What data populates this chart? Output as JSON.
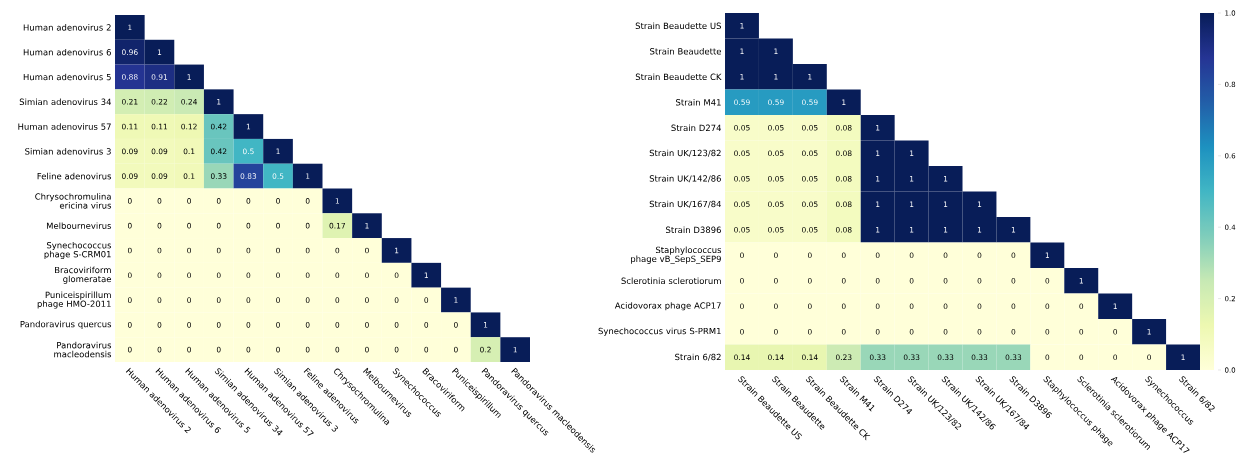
{
  "chart_data": [
    {
      "type": "heatmap",
      "data_labels": true,
      "categories": [
        "Human adenovirus 2",
        "Human adenovirus 6",
        "Human adenovirus 5",
        "Simian adenovirus 34",
        "Human adenovirus 57",
        "Simian adenovirus 3",
        "Feline adenovirus",
        "Chrysochromulina",
        "Melbournevirus",
        "Synechococcus",
        "Bracoviriform",
        "Puniceispirillum",
        "Pandoravirus quercus",
        "Pandoravirus macleodensis"
      ],
      "y_categories": [
        "Human adenovirus 2",
        "Human adenovirus 6",
        "Human adenovirus 5",
        "Simian adenovirus 34",
        "Human adenovirus 57",
        "Simian adenovirus 3",
        "Feline adenovirus",
        "Chrysochromulina ericina virus",
        "Melbournevirus",
        "Synechococcus phage S-CRM01",
        "Bracoviriform glomeratae",
        "Puniceispirillum phage HMO-2011",
        "Pandoravirus quercus",
        "Pandoravirus macleodensis"
      ],
      "cells": [
        [
          1,
          null,
          null,
          null,
          null,
          null,
          null,
          null,
          null,
          null,
          null,
          null,
          null,
          null
        ],
        [
          0.96,
          1,
          null,
          null,
          null,
          null,
          null,
          null,
          null,
          null,
          null,
          null,
          null,
          null
        ],
        [
          0.88,
          0.91,
          1,
          null,
          null,
          null,
          null,
          null,
          null,
          null,
          null,
          null,
          null,
          null
        ],
        [
          0.21,
          0.22,
          0.24,
          1,
          null,
          null,
          null,
          null,
          null,
          null,
          null,
          null,
          null,
          null
        ],
        [
          0.11,
          0.11,
          0.12,
          0.42,
          1,
          null,
          null,
          null,
          null,
          null,
          null,
          null,
          null,
          null
        ],
        [
          0.09,
          0.09,
          0.1,
          0.42,
          0.5,
          1,
          null,
          null,
          null,
          null,
          null,
          null,
          null,
          null
        ],
        [
          0.09,
          0.09,
          0.1,
          0.33,
          0.83,
          0.5,
          1,
          null,
          null,
          null,
          null,
          null,
          null,
          null
        ],
        [
          0,
          0,
          0,
          0,
          0,
          0,
          0,
          1,
          null,
          null,
          null,
          null,
          null,
          null
        ],
        [
          0,
          0,
          0,
          0,
          0,
          0,
          0,
          0.17,
          1,
          null,
          null,
          null,
          null,
          null
        ],
        [
          0,
          0,
          0,
          0,
          0,
          0,
          0,
          0,
          0,
          1,
          null,
          null,
          null,
          null
        ],
        [
          0,
          0,
          0,
          0,
          0,
          0,
          0,
          0,
          0,
          0,
          1,
          null,
          null,
          null
        ],
        [
          0,
          0,
          0,
          0,
          0,
          0,
          0,
          0,
          0,
          0,
          0,
          1,
          null,
          null
        ],
        [
          0,
          0,
          0,
          0,
          0,
          0,
          0,
          0,
          0,
          0,
          0,
          0,
          1,
          null
        ],
        [
          0,
          0,
          0,
          0,
          0,
          0,
          0,
          0,
          0,
          0,
          0,
          0,
          0.2,
          1
        ]
      ]
    },
    {
      "type": "heatmap",
      "data_labels": true,
      "categories": [
        "Strain Beaudette US",
        "Strain Beaudette",
        "Strain Beaudette CK",
        "Strain M41",
        "Strain D274",
        "Strain UK/123/82",
        "Strain UK/142/86",
        "Strain UK/167/84",
        "Strain D3896",
        "Staphylococcus phage",
        "Sclerotinia sclerotiorum",
        "Acidovorax phage ACP17",
        "Synechococcus",
        "Strain 6/82"
      ],
      "y_categories": [
        "Strain Beaudette US",
        "Strain Beaudette",
        "Strain Beaudette CK",
        "Strain M41",
        "Strain D274",
        "Strain UK/123/82",
        "Strain UK/142/86",
        "Strain UK/167/84",
        "Strain D3896",
        "Staphylococcus phage vB_SepS_SEP9",
        "Sclerotinia sclerotiorum",
        "Acidovorax phage ACP17",
        "Synechococcus virus S-PRM1",
        "Strain 6/82"
      ],
      "cells": [
        [
          1,
          null,
          null,
          null,
          null,
          null,
          null,
          null,
          null,
          null,
          null,
          null,
          null,
          null
        ],
        [
          1,
          1,
          null,
          null,
          null,
          null,
          null,
          null,
          null,
          null,
          null,
          null,
          null,
          null
        ],
        [
          1,
          1,
          1,
          null,
          null,
          null,
          null,
          null,
          null,
          null,
          null,
          null,
          null,
          null
        ],
        [
          0.59,
          0.59,
          0.59,
          1,
          null,
          null,
          null,
          null,
          null,
          null,
          null,
          null,
          null,
          null
        ],
        [
          0.05,
          0.05,
          0.05,
          0.08,
          1,
          null,
          null,
          null,
          null,
          null,
          null,
          null,
          null,
          null
        ],
        [
          0.05,
          0.05,
          0.05,
          0.08,
          1,
          1,
          null,
          null,
          null,
          null,
          null,
          null,
          null,
          null
        ],
        [
          0.05,
          0.05,
          0.05,
          0.08,
          1,
          1,
          1,
          null,
          null,
          null,
          null,
          null,
          null,
          null
        ],
        [
          0.05,
          0.05,
          0.05,
          0.08,
          1,
          1,
          1,
          1,
          null,
          null,
          null,
          null,
          null,
          null
        ],
        [
          0.05,
          0.05,
          0.05,
          0.08,
          1,
          1,
          1,
          1,
          1,
          null,
          null,
          null,
          null,
          null
        ],
        [
          0,
          0,
          0,
          0,
          0,
          0,
          0,
          0,
          0,
          1,
          null,
          null,
          null,
          null
        ],
        [
          0,
          0,
          0,
          0,
          0,
          0,
          0,
          0,
          0,
          0,
          1,
          null,
          null,
          null
        ],
        [
          0,
          0,
          0,
          0,
          0,
          0,
          0,
          0,
          0,
          0,
          0,
          1,
          null,
          null
        ],
        [
          0,
          0,
          0,
          0,
          0,
          0,
          0,
          0,
          0,
          0,
          0,
          0,
          1,
          null
        ],
        [
          0.14,
          0.14,
          0.14,
          0.23,
          0.33,
          0.33,
          0.33,
          0.33,
          0.33,
          0,
          0,
          0,
          0,
          1
        ]
      ],
      "clim": [
        0,
        1
      ],
      "cticks": [
        {
          "value": 0,
          "label": "0.0"
        },
        {
          "value": 0.2,
          "label": "0.2"
        },
        {
          "value": 0.4,
          "label": "0.4"
        },
        {
          "value": 0.6,
          "label": "0.6"
        },
        {
          "value": 0.8,
          "label": "0.8"
        },
        {
          "value": 1,
          "label": "1.0"
        }
      ]
    }
  ]
}
